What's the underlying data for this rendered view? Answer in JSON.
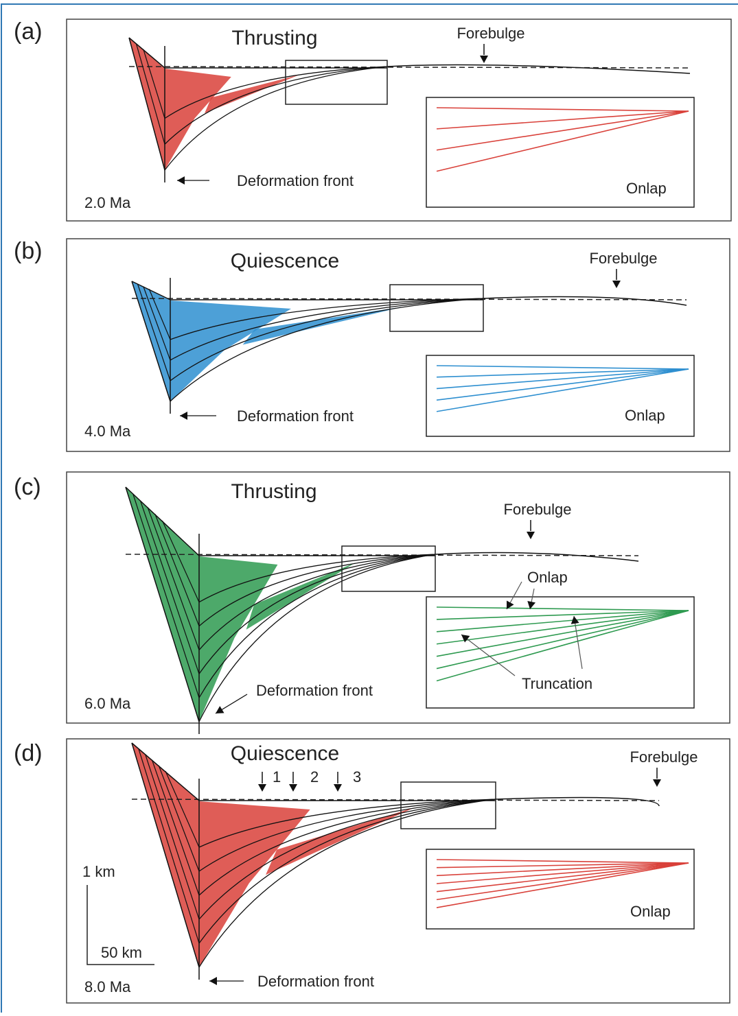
{
  "panels": [
    {
      "label": "(a)",
      "title": "Thrusting",
      "forebulge": "Forebulge",
      "front": "Deformation front",
      "age": "2.0 Ma",
      "inset_labels": [
        "Onlap"
      ]
    },
    {
      "label": "(b)",
      "title": "Quiescence",
      "forebulge": "Forebulge",
      "front": "Deformation front",
      "age": "4.0 Ma",
      "inset_labels": [
        "Onlap"
      ]
    },
    {
      "label": "(c)",
      "title": "Thrusting",
      "forebulge": "Forebulge",
      "front": "Deformation front",
      "age": "6.0 Ma",
      "inset_labels": [
        "Onlap",
        "Truncation"
      ]
    },
    {
      "label": "(d)",
      "title": "Quiescence",
      "forebulge": "Forebulge",
      "front": "Deformation front",
      "age": "8.0 Ma",
      "inset_labels": [
        "Onlap"
      ],
      "markers": [
        "1",
        "2",
        "3"
      ]
    }
  ],
  "scale": {
    "vertical": "1 km",
    "horizontal": "50 km"
  }
}
